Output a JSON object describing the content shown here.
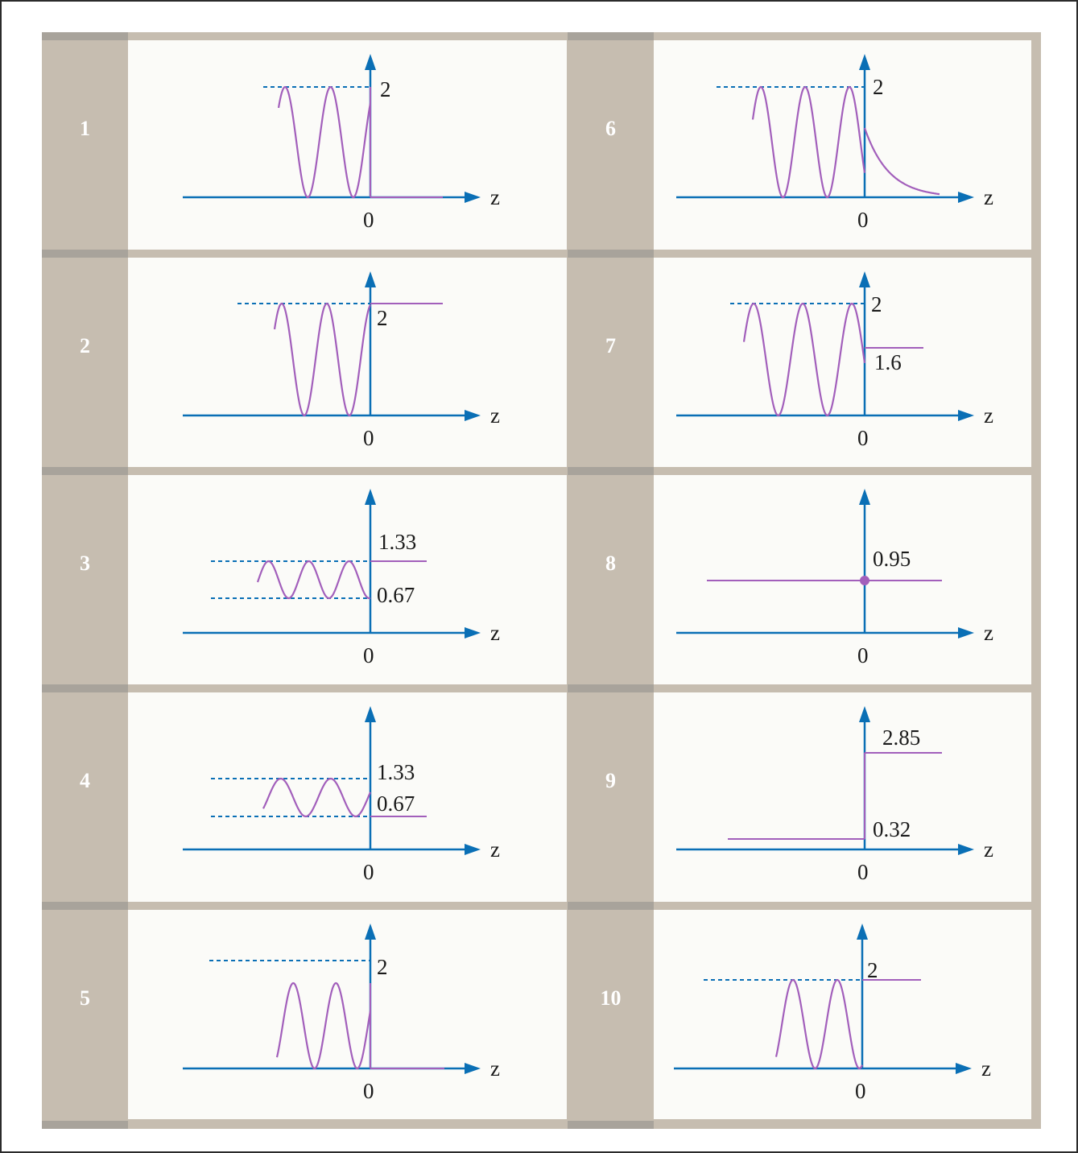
{
  "colors": {
    "axis": "#0a6fb5",
    "curve": "#a25fbb",
    "dash": "#0a6fb5",
    "panel_bg": "#c6bdb0",
    "cell_bg": "#fbfbf8"
  },
  "axis_label": "z",
  "origin_label": "0",
  "panels": [
    {
      "number": "1",
      "labels": [
        "2"
      ],
      "kind": "standing-wave then zero"
    },
    {
      "number": "2",
      "labels": [
        "2"
      ],
      "kind": "standing-wave then constant 2"
    },
    {
      "number": "3",
      "labels": [
        "1.33",
        "0.67"
      ],
      "kind": "partial standing wave then 1.33"
    },
    {
      "number": "4",
      "labels": [
        "1.33",
        "0.67"
      ],
      "kind": "partial standing wave then 0.67"
    },
    {
      "number": "5",
      "labels": [
        "2"
      ],
      "kind": "standing wave then zero"
    },
    {
      "number": "6",
      "labels": [
        "2"
      ],
      "kind": "standing wave then exponential decay"
    },
    {
      "number": "7",
      "labels": [
        "2",
        "1.6"
      ],
      "kind": "standing wave then constant 1.6"
    },
    {
      "number": "8",
      "labels": [
        "0.95"
      ],
      "kind": "constant 0.95 with dot at origin"
    },
    {
      "number": "9",
      "labels": [
        "2.85",
        "0.32"
      ],
      "kind": "step 0.32 then 2.85"
    },
    {
      "number": "10",
      "labels": [
        "2"
      ],
      "kind": "standing wave then constant 2"
    }
  ]
}
